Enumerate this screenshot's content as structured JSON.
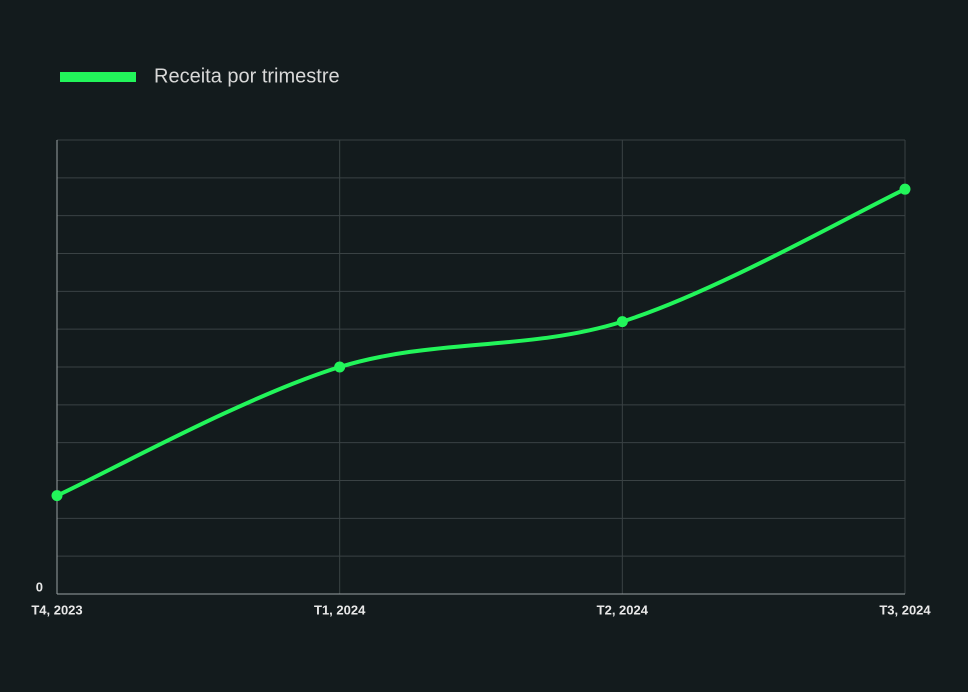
{
  "chart_data": {
    "type": "line",
    "categories": [
      "T4, 2023",
      "T1, 2024",
      "T2, 2024",
      "T3, 2024"
    ],
    "series": [
      {
        "name": "Receita por trimestre",
        "color": "#22f55a",
        "values": [
          2.6,
          6.0,
          7.2,
          10.7
        ]
      }
    ],
    "ylim": [
      0,
      12
    ],
    "yticks": [
      0,
      {
        "value": 1,
        "label": null
      },
      {
        "value": 2,
        "label": null
      },
      {
        "value": 3,
        "label": null
      },
      {
        "value": 4,
        "label": null
      },
      {
        "value": 5,
        "label": null
      },
      {
        "value": 6,
        "label": null
      },
      {
        "value": 7,
        "label": null
      },
      {
        "value": 8,
        "label": null
      },
      {
        "value": 9,
        "label": null
      },
      {
        "value": 10,
        "label": null
      },
      {
        "value": 11,
        "label": null
      },
      {
        "value": 12,
        "label": null
      }
    ],
    "grid": true,
    "legend": "top-left"
  }
}
